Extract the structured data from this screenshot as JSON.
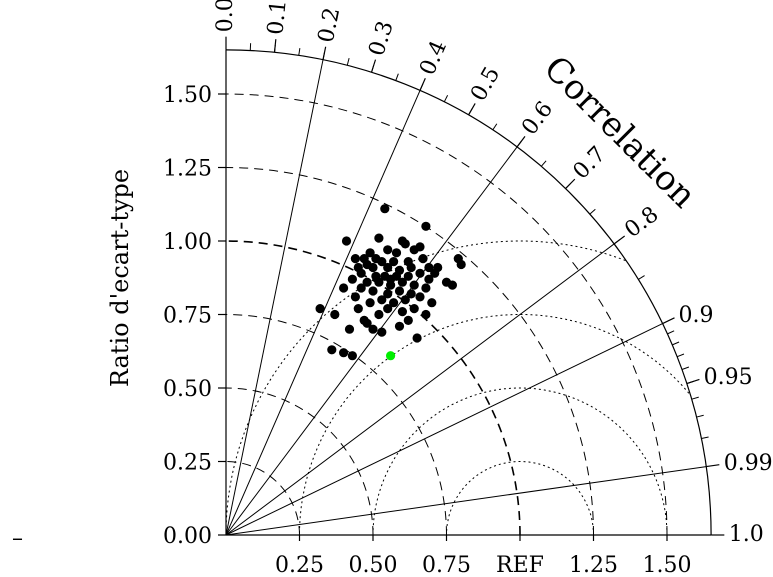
{
  "chart_data": {
    "type": "scatter",
    "subtype": "taylor-diagram",
    "ylabel": "Ratio d'ecart-type",
    "correlation_title": "Correlation",
    "y_ticks": [
      "0.00",
      "0.25",
      "0.50",
      "0.75",
      "1.00",
      "1.25",
      "1.50"
    ],
    "x_ticks": [
      "0.25",
      "0.50",
      "0.75",
      "REF",
      "1.25",
      "1.50"
    ],
    "std_max": 1.65,
    "correlation_ticks": [
      {
        "value": 0.0,
        "label": "0.0"
      },
      {
        "value": 0.1,
        "label": "0.1"
      },
      {
        "value": 0.2,
        "label": "0.2"
      },
      {
        "value": 0.3,
        "label": "0.3"
      },
      {
        "value": 0.4,
        "label": "0.4"
      },
      {
        "value": 0.5,
        "label": "0.5"
      },
      {
        "value": 0.6,
        "label": "0.6"
      },
      {
        "value": 0.7,
        "label": "0.7"
      },
      {
        "value": 0.8,
        "label": "0.8"
      },
      {
        "value": 0.9,
        "label": "0.9"
      },
      {
        "value": 0.95,
        "label": "0.95"
      },
      {
        "value": 0.99,
        "label": "0.99"
      },
      {
        "value": 1.0,
        "label": "1.0"
      }
    ],
    "correlation_rays": [
      0.2,
      0.4,
      0.6,
      0.8,
      0.9,
      0.99
    ],
    "std_arcs_dashed": [
      0.25,
      0.5,
      0.75,
      1.25,
      1.5
    ],
    "std_arc_ref": 1.0,
    "rms_arcs_dotted": [
      0.25,
      0.5,
      0.75,
      1.0
    ],
    "grid": true,
    "series": [
      {
        "color": "#000000",
        "points": [
          {
            "x": 0.54,
            "y": 1.11
          },
          {
            "x": 0.68,
            "y": 1.05
          },
          {
            "x": 0.52,
            "y": 1.01
          },
          {
            "x": 0.41,
            "y": 1.0
          },
          {
            "x": 0.61,
            "y": 0.99
          },
          {
            "x": 0.66,
            "y": 0.98
          },
          {
            "x": 0.55,
            "y": 0.97
          },
          {
            "x": 0.49,
            "y": 0.96
          },
          {
            "x": 0.58,
            "y": 0.96
          },
          {
            "x": 0.64,
            "y": 0.97
          },
          {
            "x": 0.44,
            "y": 0.94
          },
          {
            "x": 0.47,
            "y": 0.94
          },
          {
            "x": 0.53,
            "y": 0.93
          },
          {
            "x": 0.57,
            "y": 0.93
          },
          {
            "x": 0.62,
            "y": 0.93
          },
          {
            "x": 0.67,
            "y": 0.94
          },
          {
            "x": 0.79,
            "y": 0.94
          },
          {
            "x": 0.8,
            "y": 0.92
          },
          {
            "x": 0.45,
            "y": 0.91
          },
          {
            "x": 0.5,
            "y": 0.91
          },
          {
            "x": 0.55,
            "y": 0.91
          },
          {
            "x": 0.59,
            "y": 0.9
          },
          {
            "x": 0.63,
            "y": 0.91
          },
          {
            "x": 0.69,
            "y": 0.91
          },
          {
            "x": 0.72,
            "y": 0.91
          },
          {
            "x": 0.46,
            "y": 0.89
          },
          {
            "x": 0.51,
            "y": 0.88
          },
          {
            "x": 0.54,
            "y": 0.88
          },
          {
            "x": 0.58,
            "y": 0.88
          },
          {
            "x": 0.62,
            "y": 0.88
          },
          {
            "x": 0.66,
            "y": 0.89
          },
          {
            "x": 0.69,
            "y": 0.87
          },
          {
            "x": 0.43,
            "y": 0.87
          },
          {
            "x": 0.48,
            "y": 0.86
          },
          {
            "x": 0.52,
            "y": 0.86
          },
          {
            "x": 0.56,
            "y": 0.85
          },
          {
            "x": 0.6,
            "y": 0.86
          },
          {
            "x": 0.64,
            "y": 0.85
          },
          {
            "x": 0.75,
            "y": 0.86
          },
          {
            "x": 0.77,
            "y": 0.85
          },
          {
            "x": 0.46,
            "y": 0.84
          },
          {
            "x": 0.5,
            "y": 0.83
          },
          {
            "x": 0.55,
            "y": 0.82
          },
          {
            "x": 0.59,
            "y": 0.83
          },
          {
            "x": 0.63,
            "y": 0.82
          },
          {
            "x": 0.68,
            "y": 0.84
          },
          {
            "x": 0.4,
            "y": 0.84
          },
          {
            "x": 0.44,
            "y": 0.81
          },
          {
            "x": 0.53,
            "y": 0.8
          },
          {
            "x": 0.57,
            "y": 0.79
          },
          {
            "x": 0.61,
            "y": 0.8
          },
          {
            "x": 0.66,
            "y": 0.81
          },
          {
            "x": 0.7,
            "y": 0.79
          },
          {
            "x": 0.49,
            "y": 0.79
          },
          {
            "x": 0.45,
            "y": 0.77
          },
          {
            "x": 0.55,
            "y": 0.77
          },
          {
            "x": 0.64,
            "y": 0.77
          },
          {
            "x": 0.32,
            "y": 0.77
          },
          {
            "x": 0.6,
            "y": 0.76
          },
          {
            "x": 0.52,
            "y": 0.75
          },
          {
            "x": 0.68,
            "y": 0.75
          },
          {
            "x": 0.37,
            "y": 0.75
          },
          {
            "x": 0.47,
            "y": 0.73
          },
          {
            "x": 0.5,
            "y": 0.7
          },
          {
            "x": 0.59,
            "y": 0.71
          },
          {
            "x": 0.62,
            "y": 0.73
          },
          {
            "x": 0.48,
            "y": 0.72
          },
          {
            "x": 0.53,
            "y": 0.69
          },
          {
            "x": 0.65,
            "y": 0.67
          },
          {
            "x": 0.42,
            "y": 0.7
          },
          {
            "x": 0.36,
            "y": 0.63
          },
          {
            "x": 0.4,
            "y": 0.62
          },
          {
            "x": 0.43,
            "y": 0.61
          },
          {
            "x": 0.51,
            "y": 0.94
          },
          {
            "x": 0.6,
            "y": 1.0
          },
          {
            "x": 0.71,
            "y": 0.89
          },
          {
            "x": 0.56,
            "y": 0.87
          },
          {
            "x": 0.48,
            "y": 0.92
          }
        ]
      },
      {
        "color": "#00ee00",
        "points": [
          {
            "x": 0.56,
            "y": 0.61
          }
        ]
      }
    ]
  }
}
